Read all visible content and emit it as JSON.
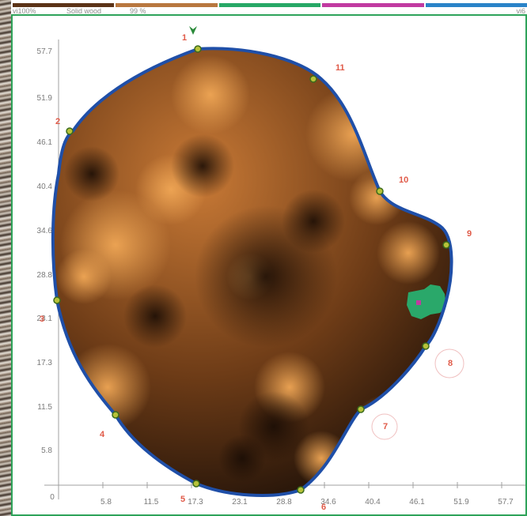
{
  "legend": {
    "left_label": "vi100%",
    "material_label": "Solid wood",
    "percent_label": "99 %",
    "right_label": "vi6",
    "colors": [
      "#5b3317",
      "#b8773f",
      "#27a866",
      "#c13aa1",
      "#2a83c8"
    ]
  },
  "axes": {
    "y_ticks": [
      "57.7",
      "51.9",
      "46.1",
      "40.4",
      "34.6",
      "28.8",
      "23.1",
      "17.3",
      "11.5",
      "5.8"
    ],
    "x_ticks": [
      "0",
      "5.8",
      "11.5",
      "17.3",
      "23.1",
      "28.8",
      "34.6",
      "40.4",
      "46.1",
      "51.9",
      "57.7"
    ]
  },
  "sensors": [
    "1",
    "11",
    "2",
    "10",
    "9",
    "3",
    "8",
    "4",
    "7",
    "5",
    "6"
  ],
  "colors": {
    "outline": "#1f4fa8",
    "sensor_fill": "#b7c23a",
    "sensor_ring": "#3b6b1c",
    "wood_dark": "#2a170a",
    "wood_light": "#e39a4e",
    "anomaly": "#2aa86a",
    "frame": "#2ea35a",
    "label": "#e05a48"
  }
}
